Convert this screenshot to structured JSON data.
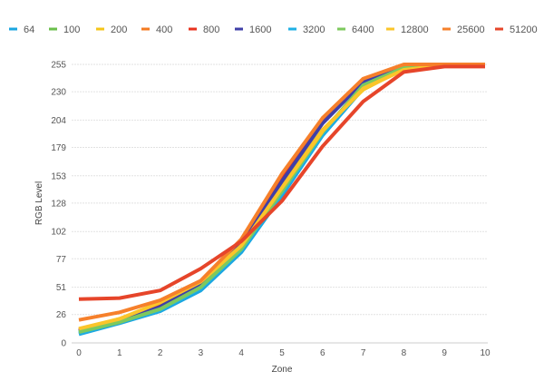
{
  "chart_data": {
    "type": "line",
    "title": "",
    "xlabel": "Zone",
    "ylabel": "RGB Level",
    "x": [
      0,
      1,
      2,
      3,
      4,
      5,
      6,
      7,
      8,
      9,
      10
    ],
    "yticks": [
      0,
      26,
      51,
      77,
      102,
      128,
      153,
      179,
      204,
      230,
      255
    ],
    "ylim": [
      0,
      255
    ],
    "xlim": [
      0,
      10
    ],
    "grid": true,
    "legend_position": "top",
    "series": [
      {
        "name": "64",
        "color": "#1aa6e0",
        "values": [
          8,
          18,
          29,
          48,
          83,
          135,
          190,
          233,
          252,
          255,
          255
        ]
      },
      {
        "name": "100",
        "color": "#6abf4b",
        "values": [
          10,
          19,
          31,
          52,
          86,
          138,
          192,
          235,
          252,
          255,
          255
        ]
      },
      {
        "name": "200",
        "color": "#f5c518",
        "values": [
          12,
          21,
          37,
          55,
          90,
          143,
          195,
          232,
          251,
          254,
          254
        ]
      },
      {
        "name": "400",
        "color": "#f47a20",
        "values": [
          12,
          22,
          35,
          56,
          92,
          150,
          203,
          240,
          254,
          254,
          254
        ]
      },
      {
        "name": "800",
        "color": "#e8321e",
        "values": [
          11,
          20,
          34,
          55,
          91,
          150,
          202,
          239,
          254,
          254,
          254
        ]
      },
      {
        "name": "1600",
        "color": "#3f3fa8",
        "values": [
          11,
          20,
          33,
          54,
          90,
          148,
          201,
          239,
          253,
          254,
          254
        ]
      },
      {
        "name": "3200",
        "color": "#1fb0e5",
        "values": [
          9,
          19,
          30,
          50,
          85,
          137,
          191,
          236,
          252,
          255,
          255
        ]
      },
      {
        "name": "6400",
        "color": "#7dc95e",
        "values": [
          10,
          19,
          31,
          51,
          86,
          139,
          193,
          236,
          252,
          255,
          255
        ]
      },
      {
        "name": "12800",
        "color": "#fbc52a",
        "values": [
          13,
          22,
          37,
          56,
          89,
          142,
          194,
          233,
          250,
          254,
          254
        ]
      },
      {
        "name": "25600",
        "color": "#f6802b",
        "values": [
          21,
          28,
          39,
          57,
          95,
          155,
          206,
          242,
          255,
          255,
          255
        ]
      },
      {
        "name": "51200",
        "color": "#e6452a",
        "values": [
          40,
          41,
          48,
          68,
          93,
          130,
          180,
          221,
          248,
          253,
          253
        ]
      }
    ]
  }
}
